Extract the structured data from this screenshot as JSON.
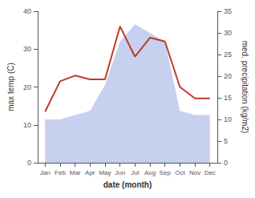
{
  "chart_data": {
    "type": "line",
    "categories": [
      "Jan",
      "Feb",
      "Mar",
      "Apr",
      "May",
      "Jun",
      "Jul",
      "Aug",
      "Sep",
      "Oct",
      "Nov",
      "Dec"
    ],
    "series": [
      {
        "type": "area",
        "axis": "y2",
        "color": "#c8d0f0",
        "values": [
          10.0,
          10.0,
          11.0,
          12.0,
          18.0,
          28.0,
          32.0,
          30.0,
          28.0,
          12.0,
          11.0,
          11.0
        ]
      },
      {
        "type": "line",
        "color": "#c0392b",
        "values": [
          13.5,
          21.5,
          23.0,
          22.0,
          22.0,
          36.0,
          28.0,
          33.0,
          32.0,
          20.0,
          17.0,
          17.0
        ]
      }
    ],
    "xlabel": "date (month)",
    "ylabel": "max temp (C)",
    "y2label": "med. precipitation (kg/m2)",
    "ylim": [
      0,
      40
    ],
    "yticks": [
      0,
      10,
      20,
      30,
      40
    ],
    "y2lim": [
      0,
      35
    ],
    "y2ticks": [
      0,
      5,
      10,
      15,
      20,
      25,
      30,
      35
    ],
    "grid": false
  }
}
